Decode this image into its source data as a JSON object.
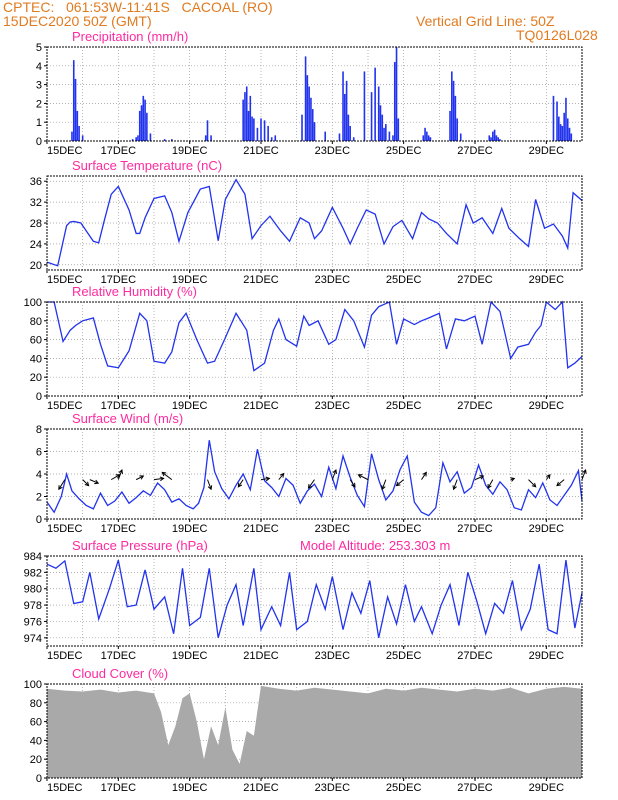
{
  "header": {
    "station": "CPTEC:   061:53W-11:41S   CACOAL (RO)",
    "run": "15DEC2020 50Z (GMT)",
    "grid_note": "Vertical Grid Line: 50Z",
    "code": "TQ0126L028"
  },
  "x_ticks": [
    "15DEC",
    "17DEC",
    "19DEC",
    "21DEC",
    "23DEC",
    "25DEC",
    "27DEC",
    "29DEC"
  ],
  "x_range_days": [
    0,
    15
  ],
  "model_altitude": "Model Altitude: 253.303 m",
  "colors": {
    "header": "#e07b21",
    "title": "#ff2aa0",
    "line": "#2233ee",
    "cloud": "#a9a9a9",
    "wind": "#000000"
  },
  "chart_data": [
    {
      "type": "bar",
      "title": "Precipitation (mm/h)",
      "ylim": [
        0,
        5
      ],
      "yticks": [
        0,
        1,
        2,
        3,
        4,
        5
      ],
      "x_unit": "days since 15DEC 00Z",
      "x": [
        0.7,
        0.75,
        0.8,
        0.85,
        0.9,
        1.0,
        2.4,
        2.5,
        2.55,
        2.6,
        2.65,
        2.7,
        2.75,
        2.8,
        2.9,
        3.3,
        3.5,
        4.45,
        4.5,
        4.6,
        5.5,
        5.55,
        5.6,
        5.65,
        5.7,
        5.75,
        5.8,
        5.9,
        6.0,
        6.1,
        6.2,
        6.3,
        6.4,
        7.15,
        7.25,
        7.3,
        7.35,
        7.4,
        7.45,
        7.5,
        7.8,
        8.2,
        8.3,
        8.35,
        8.4,
        8.45,
        8.5,
        8.6,
        8.9,
        9.1,
        9.2,
        9.3,
        9.35,
        9.4,
        9.45,
        9.5,
        9.6,
        9.7,
        9.75,
        9.8,
        9.85,
        10.55,
        10.6,
        10.65,
        10.7,
        10.75,
        11.3,
        11.35,
        11.4,
        11.45,
        11.5,
        11.6,
        12.4,
        12.45,
        12.5,
        12.55,
        12.6,
        12.65,
        12.7,
        14.2,
        14.3,
        14.35,
        14.4,
        14.45,
        14.5,
        14.55,
        14.6,
        14.65,
        14.7
      ],
      "values": [
        0.5,
        4.3,
        3.3,
        1.6,
        0.8,
        0.3,
        0.1,
        0.2,
        0.3,
        1.6,
        1.9,
        2.4,
        2.2,
        1.5,
        0.4,
        0.1,
        0.1,
        0.3,
        1.1,
        0.3,
        2.2,
        2.6,
        2.9,
        1.6,
        2.4,
        1.3,
        1.2,
        0.7,
        1.2,
        1.1,
        0.8,
        0.2,
        0.3,
        1.4,
        4.5,
        3.5,
        2.9,
        2.3,
        1.7,
        1.0,
        0.5,
        0.4,
        3.7,
        2.5,
        3.2,
        1.4,
        0.8,
        0.2,
        3.7,
        2.6,
        3.9,
        2.9,
        1.9,
        1.4,
        0.7,
        0.9,
        0.5,
        0.3,
        4.2,
        5.0,
        1.2,
        0.3,
        0.7,
        0.5,
        0.3,
        0.2,
        1.6,
        3.7,
        3.2,
        2.4,
        1.2,
        0.4,
        0.3,
        0.2,
        0.5,
        0.6,
        0.3,
        0.2,
        0.1,
        2.4,
        2.1,
        1.3,
        0.9,
        0.8,
        1.5,
        2.3,
        1.2,
        0.7,
        0.4
      ]
    },
    {
      "type": "line",
      "title": "Surface Temperature (nC)",
      "ylim": [
        19,
        37
      ],
      "yticks": [
        20,
        24,
        28,
        32,
        36
      ],
      "x_unit": "days since 15DEC 00Z",
      "x": [
        0,
        0.3,
        0.55,
        0.65,
        0.75,
        0.95,
        1.1,
        1.3,
        1.45,
        1.6,
        1.8,
        2.0,
        2.3,
        2.5,
        2.6,
        2.75,
        3.0,
        3.3,
        3.5,
        3.7,
        3.95,
        4.3,
        4.55,
        4.8,
        5.0,
        5.3,
        5.55,
        5.75,
        6.0,
        6.25,
        6.55,
        6.8,
        7.1,
        7.35,
        7.5,
        7.7,
        8.0,
        8.3,
        8.5,
        8.7,
        8.95,
        9.2,
        9.45,
        9.7,
        9.95,
        10.25,
        10.5,
        10.7,
        10.95,
        11.2,
        11.5,
        11.75,
        11.95,
        12.2,
        12.5,
        12.75,
        12.95,
        13.25,
        13.5,
        13.7,
        13.95,
        14.2,
        14.45,
        14.6,
        14.75,
        15.0
      ],
      "values": [
        20.5,
        19.8,
        27.5,
        28.2,
        28.3,
        28.0,
        26.5,
        24.5,
        24.2,
        28.3,
        33.5,
        35.0,
        30.5,
        26.0,
        26.0,
        29.0,
        32.7,
        33.2,
        30.0,
        24.5,
        30.0,
        34.5,
        35.0,
        24.6,
        32.5,
        36.3,
        33.5,
        25.0,
        27.5,
        29.3,
        26.5,
        24.5,
        29.0,
        28.0,
        25.0,
        26.5,
        31.0,
        27.0,
        24.0,
        27.0,
        30.5,
        29.7,
        24.0,
        27.3,
        28.5,
        25.0,
        30.0,
        28.8,
        28.0,
        26.0,
        24.0,
        31.5,
        28.0,
        29.0,
        26.0,
        30.8,
        27.0,
        25.0,
        23.5,
        32.5,
        27.0,
        27.8,
        25.5,
        23.2,
        33.8,
        32.3
      ]
    },
    {
      "type": "line",
      "title": "Relative Humidity (%)",
      "ylim": [
        0,
        100
      ],
      "yticks": [
        0,
        20,
        40,
        60,
        80,
        100
      ],
      "x_unit": "days since 15DEC 00Z",
      "x": [
        0,
        0.2,
        0.45,
        0.65,
        0.8,
        1.0,
        1.3,
        1.5,
        1.7,
        2.0,
        2.3,
        2.6,
        2.8,
        3.0,
        3.3,
        3.5,
        3.7,
        3.9,
        4.2,
        4.5,
        4.7,
        5.0,
        5.3,
        5.6,
        5.8,
        6.1,
        6.35,
        6.5,
        6.7,
        7.0,
        7.2,
        7.35,
        7.6,
        7.9,
        8.1,
        8.35,
        8.6,
        8.9,
        9.1,
        9.3,
        9.6,
        9.8,
        10.0,
        10.3,
        10.5,
        10.7,
        11.0,
        11.2,
        11.45,
        11.7,
        12.0,
        12.2,
        12.45,
        12.7,
        13.0,
        13.2,
        13.5,
        13.7,
        13.85,
        14.0,
        14.25,
        14.45,
        14.6,
        14.8,
        15.0
      ],
      "values": [
        100,
        100,
        58,
        70,
        75,
        80,
        83,
        55,
        32,
        30,
        48,
        88,
        80,
        37,
        35,
        47,
        78,
        88,
        60,
        35,
        37,
        62,
        88,
        70,
        27,
        35,
        70,
        82,
        60,
        53,
        85,
        75,
        80,
        55,
        60,
        92,
        80,
        52,
        86,
        95,
        100,
        55,
        82,
        76,
        80,
        83,
        88,
        50,
        82,
        80,
        85,
        55,
        100,
        90,
        40,
        52,
        55,
        68,
        75,
        100,
        92,
        100,
        30,
        35,
        42
      ]
    },
    {
      "type": "line",
      "title": "Surface Wind (m/s)",
      "ylim": [
        0,
        8
      ],
      "yticks": [
        0,
        2,
        4,
        6,
        8
      ],
      "x_unit": "days since 15DEC 00Z",
      "x": [
        0,
        0.2,
        0.4,
        0.55,
        0.7,
        0.9,
        1.1,
        1.3,
        1.5,
        1.7,
        1.9,
        2.1,
        2.3,
        2.5,
        2.7,
        2.9,
        3.1,
        3.3,
        3.5,
        3.7,
        3.9,
        4.1,
        4.25,
        4.4,
        4.55,
        4.7,
        4.9,
        5.1,
        5.3,
        5.5,
        5.7,
        5.9,
        6.1,
        6.3,
        6.5,
        6.7,
        6.9,
        7.1,
        7.3,
        7.5,
        7.7,
        7.9,
        8.1,
        8.3,
        8.5,
        8.7,
        8.9,
        9.1,
        9.3,
        9.5,
        9.7,
        9.9,
        10.1,
        10.3,
        10.5,
        10.7,
        10.9,
        11.1,
        11.3,
        11.5,
        11.7,
        11.9,
        12.1,
        12.3,
        12.5,
        12.7,
        12.9,
        13.1,
        13.3,
        13.5,
        13.7,
        13.9,
        14.1,
        14.3,
        14.5,
        14.7,
        14.9,
        15.0
      ],
      "values": [
        1.5,
        0.6,
        2.0,
        4.0,
        2.5,
        1.8,
        1.2,
        0.9,
        2.3,
        1.2,
        1.6,
        2.4,
        1.4,
        1.9,
        2.5,
        2.1,
        3.2,
        2.6,
        1.5,
        1.8,
        1.2,
        0.9,
        1.4,
        2.8,
        7.0,
        4.2,
        2.7,
        1.8,
        3.0,
        4.0,
        2.6,
        6.2,
        3.4,
        2.8,
        2.0,
        3.6,
        3.0,
        1.4,
        2.5,
        3.1,
        2.0,
        4.6,
        2.7,
        5.6,
        3.7,
        2.1,
        1.1,
        5.8,
        3.5,
        1.7,
        2.5,
        4.4,
        5.6,
        1.5,
        0.6,
        0.3,
        1.0,
        5.0,
        3.3,
        4.2,
        2.3,
        2.8,
        4.8,
        3.0,
        2.2,
        3.3,
        2.6,
        1.0,
        0.8,
        2.6,
        1.9,
        3.2,
        1.7,
        1.2,
        2.1,
        3.0,
        4.3,
        1.6
      ],
      "wind_vectors": {
        "x": [
          0.5,
          1.0,
          1.2,
          1.8,
          2.0,
          2.5,
          3.0,
          3.5,
          4.5,
          5.5,
          6.0,
          6.5,
          7.5,
          8.0,
          8.5,
          9.0,
          9.5,
          10.0,
          10.5,
          11.5,
          12.0,
          12.5,
          13.0,
          13.5,
          14.0,
          14.5,
          15.0
        ],
        "dx": [
          -0.5,
          0.5,
          0.7,
          0.7,
          0.3,
          0.6,
          0.8,
          -0.8,
          0.3,
          -0.4,
          0.7,
          0.4,
          -0.5,
          0.3,
          0.4,
          -0.8,
          -0.3,
          -0.6,
          0.4,
          -0.3,
          0.7,
          -0.4,
          0.3,
          0.6,
          0.3,
          -0.6,
          0.3
        ],
        "dy": [
          -0.8,
          -0.5,
          -0.3,
          0.4,
          0.8,
          0.3,
          0.1,
          0.6,
          -0.8,
          -0.6,
          0.1,
          0.5,
          -0.7,
          0.8,
          -0.6,
          0.4,
          -0.8,
          -0.5,
          0.6,
          -0.8,
          0.3,
          -0.7,
          0.1,
          -0.6,
          0.4,
          -0.5,
          0.8
        ]
      }
    },
    {
      "type": "line",
      "title": "Surface Pressure (hPa)",
      "ylim": [
        973,
        984
      ],
      "yticks": [
        974,
        976,
        978,
        980,
        982,
        984
      ],
      "x_unit": "days since 15DEC 00Z",
      "x": [
        0,
        0.25,
        0.5,
        0.75,
        1.0,
        1.2,
        1.45,
        1.75,
        2.0,
        2.25,
        2.5,
        2.75,
        3.0,
        3.3,
        3.55,
        3.8,
        4.0,
        4.3,
        4.55,
        4.8,
        5.05,
        5.3,
        5.5,
        5.8,
        6.0,
        6.3,
        6.55,
        6.8,
        7.0,
        7.3,
        7.55,
        7.8,
        8.0,
        8.3,
        8.55,
        8.8,
        9.05,
        9.3,
        9.55,
        9.8,
        10.05,
        10.3,
        10.5,
        10.8,
        11.05,
        11.3,
        11.55,
        11.8,
        12.05,
        12.3,
        12.55,
        12.8,
        13.05,
        13.3,
        13.55,
        13.8,
        14.05,
        14.3,
        14.55,
        14.8,
        15.0
      ],
      "values": [
        983,
        982.5,
        983.4,
        978.2,
        978.4,
        982,
        976.3,
        980,
        983.5,
        977.8,
        978,
        982.3,
        977.5,
        979,
        974.5,
        982.5,
        975.5,
        976.5,
        982.5,
        974,
        978,
        980.5,
        975.5,
        982.5,
        975,
        977.8,
        975.5,
        982,
        975,
        976,
        980.5,
        977.5,
        981.5,
        975,
        979.5,
        977,
        981,
        974,
        979,
        975.7,
        980.5,
        976,
        977.8,
        974.5,
        978,
        980.5,
        975.5,
        982,
        978.5,
        974.5,
        978.2,
        977,
        981,
        975,
        977.5,
        983,
        975,
        974.5,
        983.5,
        975.2,
        979.5
      ]
    },
    {
      "type": "area",
      "title": "Cloud Cover (%)",
      "ylim": [
        0,
        100
      ],
      "yticks": [
        0,
        20,
        40,
        60,
        80,
        100
      ],
      "x_unit": "days since 15DEC 00Z",
      "x": [
        0,
        0.5,
        1.0,
        1.5,
        2.0,
        2.5,
        3.0,
        3.2,
        3.4,
        3.6,
        3.8,
        4.0,
        4.2,
        4.4,
        4.6,
        4.8,
        5.0,
        5.2,
        5.4,
        5.6,
        5.8,
        6.0,
        6.5,
        7.0,
        7.5,
        8.0,
        8.5,
        9.0,
        9.5,
        10.0,
        10.5,
        11.0,
        11.5,
        12.0,
        12.5,
        13.0,
        13.5,
        14.0,
        14.5,
        15.0
      ],
      "values": [
        95,
        93,
        92,
        94,
        91,
        93,
        90,
        70,
        35,
        55,
        85,
        90,
        60,
        20,
        55,
        35,
        75,
        30,
        15,
        50,
        45,
        98,
        95,
        93,
        96,
        94,
        92,
        90,
        95,
        93,
        96,
        94,
        92,
        95,
        93,
        96,
        90,
        95,
        97,
        95
      ]
    }
  ]
}
